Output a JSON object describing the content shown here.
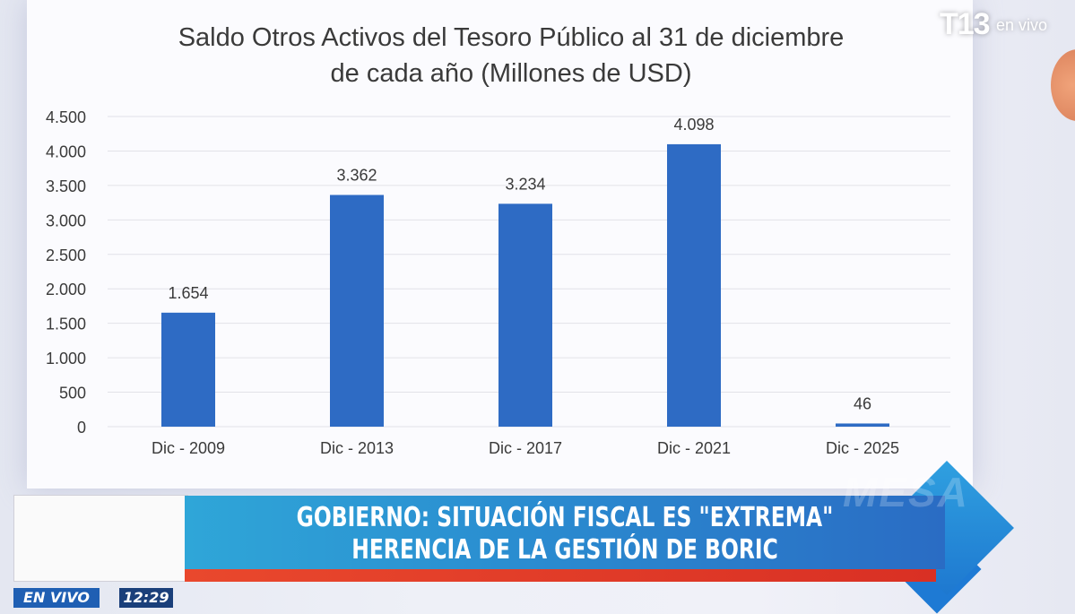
{
  "broadcast": {
    "logo": "T13",
    "logo_sub": "en vivo",
    "headline_line1": "GOBIERNO: SITUACIÓN FISCAL ES \"EXTREMA\"",
    "headline_line2": "HERENCIA DE LA GESTIÓN DE BORIC",
    "banner_ghost": "MESA",
    "live_label": "EN VIVO",
    "time": "12:29"
  },
  "colors": {
    "bar": "#2e6bc4",
    "banner": "#2a8cd0",
    "accent": "#e9482d"
  },
  "chart_data": {
    "type": "bar",
    "title_line1": "Saldo Otros Activos del Tesoro Público al 31 de diciembre",
    "title_line2": "de cada año (Millones de USD)",
    "categories": [
      "Dic - 2009",
      "Dic - 2013",
      "Dic - 2017",
      "Dic - 2021",
      "Dic - 2025"
    ],
    "values": [
      1654,
      3362,
      3234,
      4098,
      46
    ],
    "value_labels": [
      "1.654",
      "3.362",
      "3.234",
      "4.098",
      "46"
    ],
    "yticks": [
      0,
      500,
      1000,
      1500,
      2000,
      2500,
      3000,
      3500,
      4000,
      4500
    ],
    "ytick_labels": [
      "0",
      "500",
      "1.000",
      "1.500",
      "2.000",
      "2.500",
      "3.000",
      "3.500",
      "4.000",
      "4.500"
    ],
    "ylim": [
      0,
      4500
    ],
    "grid": true,
    "legend": false
  }
}
